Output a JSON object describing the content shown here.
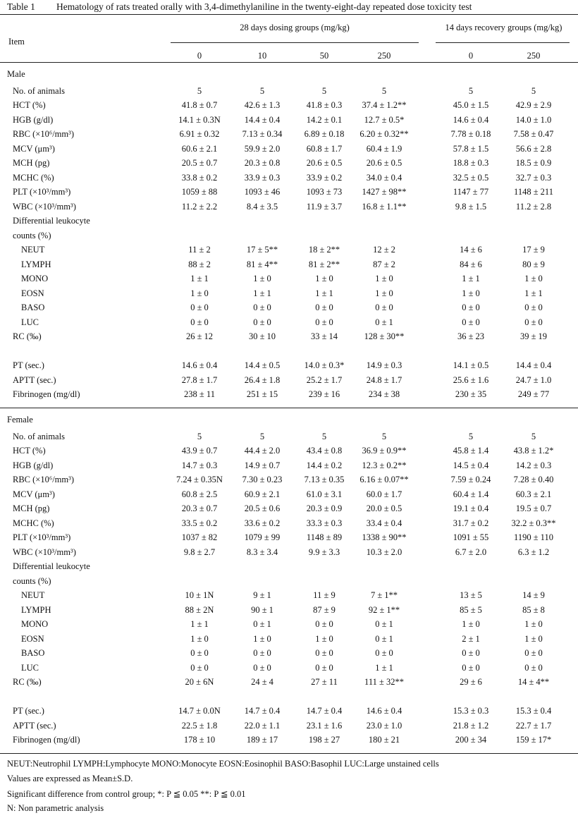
{
  "caption": {
    "number": "Table 1",
    "title": "Hematology of rats treated orally with 3,4-dimethylaniline in the twenty-eight-day repeated dose toxicity test"
  },
  "header": {
    "item": "Item",
    "dosing_group": "28 days dosing groups (mg/kg)",
    "recovery_group": "14 days recovery groups (mg/kg)",
    "doses": [
      "0",
      "10",
      "50",
      "250",
      "0",
      "250"
    ]
  },
  "sections": [
    {
      "name": "Male",
      "rows": [
        {
          "label": "No. of animals",
          "values": [
            "5",
            "5",
            "5",
            "5",
            "5",
            "5"
          ]
        },
        {
          "label": "HCT (%)",
          "values": [
            "41.8 ± 0.7",
            "42.6 ± 1.3",
            "41.8 ± 0.3",
            "37.4 ± 1.2**",
            "45.0 ± 1.5",
            "42.9 ± 2.9"
          ]
        },
        {
          "label": "HGB (g/dl)",
          "values": [
            "14.1 ± 0.3N",
            "14.4 ± 0.4",
            "14.2 ± 0.1",
            "12.7 ± 0.5*",
            "14.6 ± 0.4",
            "14.0 ± 1.0"
          ]
        },
        {
          "label": "RBC (×10⁶/mm³)",
          "values": [
            "6.91 ± 0.32",
            "7.13 ± 0.34",
            "6.89 ± 0.18",
            "6.20 ± 0.32**",
            "7.78 ± 0.18",
            "7.58 ± 0.47"
          ]
        },
        {
          "label": "MCV (μm³)",
          "values": [
            "60.6 ± 2.1",
            "59.9 ± 2.0",
            "60.8 ± 1.7",
            "60.4 ± 1.9",
            "57.8 ± 1.5",
            "56.6 ± 2.8"
          ]
        },
        {
          "label": "MCH (pg)",
          "values": [
            "20.5 ± 0.7",
            "20.3 ± 0.8",
            "20.6 ± 0.5",
            "20.6 ± 0.5",
            "18.8 ± 0.3",
            "18.5 ± 0.9"
          ]
        },
        {
          "label": "MCHC (%)",
          "values": [
            "33.8 ± 0.2",
            "33.9 ± 0.3",
            "33.9 ± 0.2",
            "34.0 ± 0.4",
            "32.5 ± 0.5",
            "32.7 ± 0.3"
          ]
        },
        {
          "label": "PLT (×10³/mm³)",
          "values": [
            "1059 ± 88",
            "1093 ± 46",
            "1093 ± 73",
            "1427 ± 98**",
            "1147 ± 77",
            "1148 ± 211"
          ]
        },
        {
          "label": "WBC (×10³/mm³)",
          "values": [
            "11.2 ± 2.2",
            "8.4 ± 3.5",
            "11.9 ± 3.7",
            "16.8 ± 1.1**",
            "9.8 ± 1.5",
            "11.2 ± 2.8"
          ]
        },
        {
          "label": "Differential leukocyte",
          "values": []
        },
        {
          "label": "counts (%)",
          "values": []
        },
        {
          "label": "NEUT",
          "indent": true,
          "values": [
            "11 ± 2",
            "17 ± 5**",
            "18 ± 2**",
            "12 ± 2",
            "14 ± 6",
            "17 ± 9"
          ]
        },
        {
          "label": "LYMPH",
          "indent": true,
          "values": [
            "88 ± 2",
            "81 ± 4**",
            "81 ± 2**",
            "87 ± 2",
            "84 ± 6",
            "80 ± 9"
          ]
        },
        {
          "label": "MONO",
          "indent": true,
          "values": [
            "1 ± 1",
            "1 ± 0",
            "1 ± 0",
            "1 ± 0",
            "1 ± 1",
            "1 ± 0"
          ]
        },
        {
          "label": "EOSN",
          "indent": true,
          "values": [
            "1 ± 0",
            "1 ± 1",
            "1 ± 1",
            "1 ± 0",
            "1 ± 0",
            "1 ± 1"
          ]
        },
        {
          "label": "BASO",
          "indent": true,
          "values": [
            "0 ± 0",
            "0 ± 0",
            "0 ± 0",
            "0 ± 0",
            "0 ± 0",
            "0 ± 0"
          ]
        },
        {
          "label": "LUC",
          "indent": true,
          "values": [
            "0 ± 0",
            "0 ± 0",
            "0 ± 0",
            "0 ± 1",
            "0 ± 0",
            "0 ± 0"
          ]
        },
        {
          "label": "RC (‰)",
          "values": [
            "26 ± 12",
            "30 ± 10",
            "33 ± 14",
            "128 ± 30**",
            "36 ± 23",
            "39 ± 19"
          ]
        },
        {
          "label": "",
          "values": []
        },
        {
          "label": "PT (sec.)",
          "values": [
            "14.6 ± 0.4",
            "14.4 ± 0.5",
            "14.0 ± 0.3*",
            "14.9 ± 0.3",
            "14.1 ± 0.5",
            "14.4 ± 0.4"
          ]
        },
        {
          "label": "APTT (sec.)",
          "values": [
            "27.8 ± 1.7",
            "26.4 ± 1.8",
            "25.2 ± 1.7",
            "24.8 ± 1.7",
            "25.6 ± 1.6",
            "24.7 ± 1.0"
          ]
        },
        {
          "label": "Fibrinogen (mg/dl)",
          "values": [
            "238 ± 11",
            "251 ± 15",
            "239 ± 16",
            "234 ± 38",
            "230 ± 35",
            "249 ± 77"
          ]
        }
      ]
    },
    {
      "name": "Female",
      "rows": [
        {
          "label": "No. of animals",
          "values": [
            "5",
            "5",
            "5",
            "5",
            "5",
            "5"
          ]
        },
        {
          "label": "HCT (%)",
          "values": [
            "43.9 ± 0.7",
            "44.4 ± 2.0",
            "43.4 ± 0.8",
            "36.9 ± 0.9**",
            "45.8 ± 1.4",
            "43.8 ± 1.2*"
          ]
        },
        {
          "label": "HGB (g/dl)",
          "values": [
            "14.7 ± 0.3",
            "14.9 ± 0.7",
            "14.4 ± 0.2",
            "12.3 ± 0.2**",
            "14.5 ± 0.4",
            "14.2 ± 0.3"
          ]
        },
        {
          "label": "RBC (×10⁶/mm³)",
          "values": [
            "7.24 ± 0.35N",
            "7.30 ± 0.23",
            "7.13 ± 0.35",
            "6.16 ± 0.07**",
            "7.59 ± 0.24",
            "7.28 ± 0.40"
          ]
        },
        {
          "label": "MCV (μm³)",
          "values": [
            "60.8 ± 2.5",
            "60.9 ± 2.1",
            "61.0 ± 3.1",
            "60.0 ± 1.7",
            "60.4 ± 1.4",
            "60.3 ± 2.1"
          ]
        },
        {
          "label": "MCH (pg)",
          "values": [
            "20.3 ± 0.7",
            "20.5 ± 0.6",
            "20.3 ± 0.9",
            "20.0 ± 0.5",
            "19.1 ± 0.4",
            "19.5 ± 0.7"
          ]
        },
        {
          "label": "MCHC (%)",
          "values": [
            "33.5 ± 0.2",
            "33.6 ± 0.2",
            "33.3 ± 0.3",
            "33.4 ± 0.4",
            "31.7 ± 0.2",
            "32.2 ± 0.3**"
          ]
        },
        {
          "label": "PLT (×10³/mm³)",
          "values": [
            "1037 ± 82",
            "1079 ± 99",
            "1148 ± 89",
            "1338 ± 90**",
            "1091 ± 55",
            "1190 ± 110"
          ]
        },
        {
          "label": "WBC (×10³/mm³)",
          "values": [
            "9.8 ± 2.7",
            "8.3 ± 3.4",
            "9.9 ± 3.3",
            "10.3 ± 2.0",
            "6.7 ± 2.0",
            "6.3 ± 1.2"
          ]
        },
        {
          "label": "Differential leukocyte",
          "values": []
        },
        {
          "label": "counts (%)",
          "values": []
        },
        {
          "label": "NEUT",
          "indent": true,
          "values": [
            "10 ± 1N",
            "9 ± 1",
            "11 ± 9",
            "7 ± 1**",
            "13 ± 5",
            "14 ± 9"
          ]
        },
        {
          "label": "LYMPH",
          "indent": true,
          "values": [
            "88 ± 2N",
            "90 ± 1",
            "87 ± 9",
            "92 ± 1**",
            "85 ± 5",
            "85 ± 8"
          ]
        },
        {
          "label": "MONO",
          "indent": true,
          "values": [
            "1 ± 1",
            "0 ± 1",
            "0 ± 0",
            "0 ± 1",
            "1 ± 0",
            "1 ± 0"
          ]
        },
        {
          "label": "EOSN",
          "indent": true,
          "values": [
            "1 ± 0",
            "1 ± 0",
            "1 ± 0",
            "0 ± 1",
            "2 ± 1",
            "1 ± 0"
          ]
        },
        {
          "label": "BASO",
          "indent": true,
          "values": [
            "0 ± 0",
            "0 ± 0",
            "0 ± 0",
            "0 ± 0",
            "0 ± 0",
            "0 ± 0"
          ]
        },
        {
          "label": "LUC",
          "indent": true,
          "values": [
            "0 ± 0",
            "0 ± 0",
            "0 ± 0",
            "1 ± 1",
            "0 ± 0",
            "0 ± 0"
          ]
        },
        {
          "label": "RC (‰)",
          "values": [
            "20 ± 6N",
            "24 ± 4",
            "27 ± 11",
            "111 ± 32**",
            "29 ± 6",
            "14 ± 4**"
          ]
        },
        {
          "label": "",
          "values": []
        },
        {
          "label": "PT (sec.)",
          "values": [
            "14.7 ± 0.0N",
            "14.7 ± 0.4",
            "14.7 ± 0.4",
            "14.6 ± 0.4",
            "15.3 ± 0.3",
            "15.3 ± 0.4"
          ]
        },
        {
          "label": "APTT (sec.)",
          "values": [
            "22.5 ± 1.8",
            "22.0 ± 1.1",
            "23.1 ± 1.6",
            "23.0 ± 1.0",
            "21.8 ± 1.2",
            "22.7 ± 1.7"
          ]
        },
        {
          "label": "Fibrinogen (mg/dl)",
          "values": [
            "178 ± 10",
            "189 ± 17",
            "198 ± 27",
            "180 ± 21",
            "200 ± 34",
            "159 ± 17*"
          ]
        }
      ]
    }
  ],
  "footnotes": [
    "NEUT:Neutrophil    LYMPH:Lymphocyte    MONO:Monocyte    EOSN:Eosinophil    BASO:Basophil    LUC:Large unstained cells",
    "Values are expressed as Mean±S.D.",
    "Significant difference from control group;    *: P ≦ 0.05    **: P ≦ 0.01",
    "N: Non parametric analysis"
  ]
}
